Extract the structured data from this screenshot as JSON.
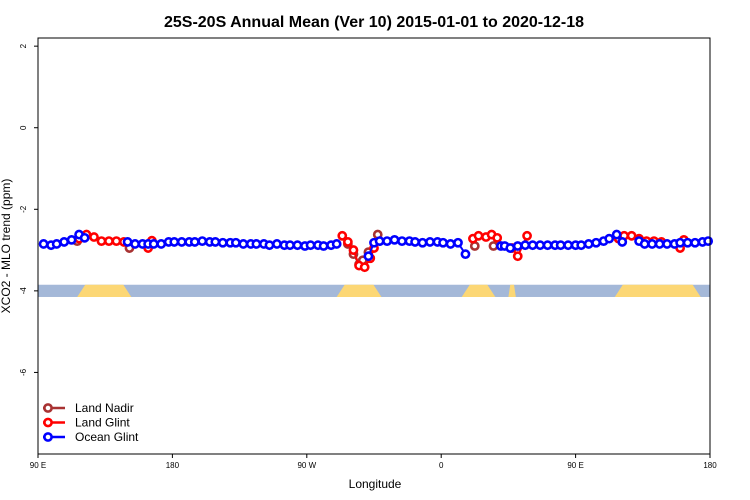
{
  "chart_data": {
    "type": "scatter",
    "title": "25S-20S Annual Mean (Ver 10)   2015-01-01 to 2020-12-18",
    "xlabel": "Longitude",
    "ylabel": "XCO2 - MLO trend (ppm)",
    "xlim": [
      90,
      450
    ],
    "ylim": [
      -8,
      2.2
    ],
    "x_ticks": [
      {
        "value": 90,
        "label": "90 E"
      },
      {
        "value": 162,
        "label": "180"
      },
      {
        "value": 234,
        "label": "90 W"
      },
      {
        "value": 306,
        "label": "0"
      },
      {
        "value": 378,
        "label": "90 E"
      },
      {
        "value": 450,
        "label": "180"
      }
    ],
    "y_ticks": [
      {
        "value": 2,
        "label": "2"
      },
      {
        "value": 0,
        "label": "0"
      },
      {
        "value": -2,
        "label": "-2"
      },
      {
        "value": -4,
        "label": "-4"
      },
      {
        "value": -6,
        "label": "-6"
      }
    ],
    "map_strip": {
      "y_range": [
        -4.15,
        -3.85
      ],
      "ocean_color": "#a4b8d8",
      "land_color": "#fcd775",
      "land_segments": [
        [
          111,
          140
        ],
        [
          250,
          274
        ],
        [
          317,
          335
        ],
        [
          342,
          346
        ],
        [
          399,
          445
        ]
      ]
    },
    "legend": {
      "position": "bottom-left",
      "entries": [
        {
          "name": "Land Nadir",
          "color": "#a83232"
        },
        {
          "name": "Land Glint",
          "color": "#ff0000"
        },
        {
          "name": "Ocean Glint",
          "color": "#0000ff"
        }
      ]
    },
    "series": [
      {
        "name": "Land Nadir",
        "color": "#a83232",
        "x": [
          111,
          139,
          256,
          259,
          262,
          264,
          267,
          272,
          324,
          334
        ],
        "y": [
          -2.78,
          -2.95,
          -2.85,
          -3.1,
          -3.35,
          -3.25,
          -3.05,
          -2.62,
          -2.9,
          -2.9
        ]
      },
      {
        "name": "Land Glint",
        "color": "#ff0000",
        "x": [
          112,
          116,
          120,
          124,
          128,
          132,
          136,
          149,
          151,
          253,
          256,
          259,
          262,
          265,
          268,
          270,
          323,
          326,
          330,
          333,
          336,
          344,
          347,
          352,
          401,
          404,
          408,
          412,
          416,
          420,
          424,
          434,
          436
        ],
        "y": [
          -2.72,
          -2.62,
          -2.68,
          -2.78,
          -2.78,
          -2.78,
          -2.8,
          -2.95,
          -2.77,
          -2.65,
          -2.8,
          -3.0,
          -3.38,
          -3.42,
          -3.2,
          -2.95,
          -2.72,
          -2.65,
          -2.68,
          -2.62,
          -2.7,
          -2.95,
          -3.15,
          -2.65,
          -2.72,
          -2.65,
          -2.65,
          -2.72,
          -2.78,
          -2.78,
          -2.8,
          -2.95,
          -2.75
        ]
      },
      {
        "name": "Ocean Glint",
        "color": "#0000ff",
        "x": [
          93,
          97,
          100,
          104,
          108,
          112,
          115,
          138,
          142,
          146,
          149,
          152,
          156,
          160,
          163,
          167,
          171,
          174,
          178,
          182,
          185,
          189,
          193,
          196,
          200,
          204,
          207,
          211,
          214,
          218,
          222,
          225,
          229,
          233,
          236,
          240,
          243,
          247,
          250,
          267,
          270,
          273,
          277,
          281,
          285,
          289,
          292,
          296,
          300,
          304,
          307,
          311,
          315,
          319,
          338,
          340,
          343,
          347,
          351,
          355,
          359,
          363,
          367,
          370,
          374,
          378,
          381,
          385,
          389,
          393,
          396,
          400,
          403,
          412,
          415,
          419,
          423,
          427,
          431,
          434,
          438,
          442,
          446,
          449
        ],
        "y": [
          -2.85,
          -2.88,
          -2.85,
          -2.8,
          -2.75,
          -2.62,
          -2.7,
          -2.8,
          -2.85,
          -2.85,
          -2.85,
          -2.85,
          -2.85,
          -2.8,
          -2.8,
          -2.8,
          -2.8,
          -2.8,
          -2.78,
          -2.8,
          -2.8,
          -2.82,
          -2.82,
          -2.82,
          -2.85,
          -2.85,
          -2.85,
          -2.85,
          -2.88,
          -2.85,
          -2.88,
          -2.88,
          -2.88,
          -2.9,
          -2.88,
          -2.88,
          -2.9,
          -2.88,
          -2.85,
          -3.15,
          -2.82,
          -2.78,
          -2.78,
          -2.75,
          -2.78,
          -2.78,
          -2.8,
          -2.82,
          -2.8,
          -2.8,
          -2.82,
          -2.85,
          -2.82,
          -3.1,
          -2.9,
          -2.9,
          -2.95,
          -2.9,
          -2.88,
          -2.88,
          -2.88,
          -2.88,
          -2.88,
          -2.88,
          -2.88,
          -2.88,
          -2.88,
          -2.85,
          -2.82,
          -2.78,
          -2.72,
          -2.62,
          -2.8,
          -2.78,
          -2.85,
          -2.85,
          -2.85,
          -2.85,
          -2.85,
          -2.82,
          -2.82,
          -2.82,
          -2.8,
          -2.78
        ]
      }
    ]
  }
}
